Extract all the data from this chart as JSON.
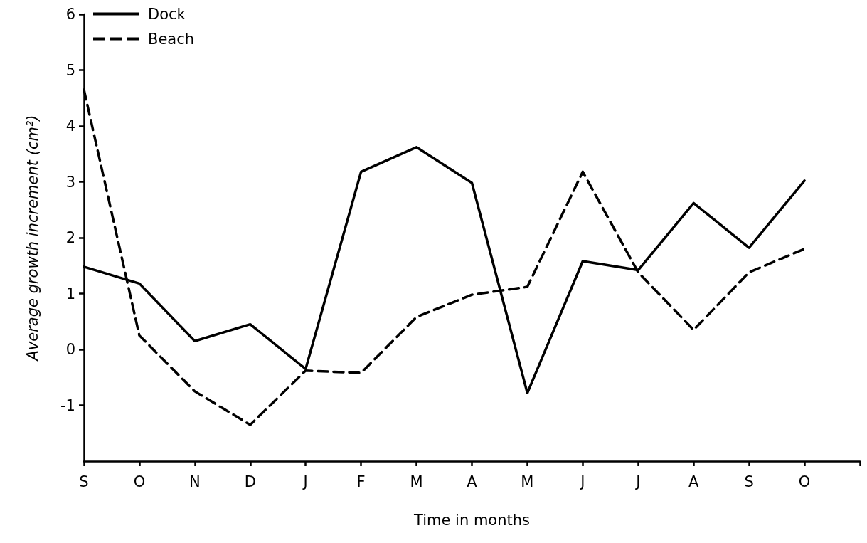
{
  "chart_data": {
    "type": "line",
    "xlabel": "Time in months",
    "ylabel": "Average growth increment (cm²)",
    "categories": [
      "S",
      "O",
      "N",
      "D",
      "J",
      "F",
      "M",
      "A",
      "M",
      "J",
      "J",
      "A",
      "S",
      "O",
      null
    ],
    "series": [
      {
        "name": "Dock",
        "color": "#000000",
        "line_style": "solid",
        "values": [
          1.48,
          1.18,
          0.15,
          0.45,
          -0.35,
          3.18,
          3.62,
          2.98,
          -0.78,
          1.58,
          1.42,
          2.62,
          1.82,
          3.02,
          null
        ]
      },
      {
        "name": "Beach",
        "color": "#000000",
        "line_style": "dashed",
        "values": [
          4.65,
          0.25,
          -0.75,
          -1.35,
          -0.38,
          -0.42,
          0.58,
          0.98,
          1.12,
          3.18,
          1.38,
          0.35,
          1.38,
          1.8,
          null
        ]
      }
    ],
    "ylim": [
      -2,
      6
    ],
    "yticks": [
      -1,
      0,
      1,
      2,
      3,
      4,
      5,
      6
    ],
    "grid": false,
    "legend": "top left",
    "marker": "none"
  }
}
